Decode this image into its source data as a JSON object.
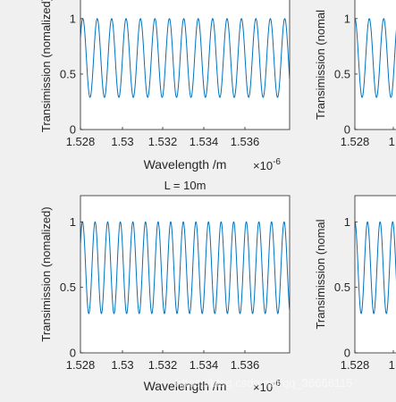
{
  "chart_data": [
    {
      "type": "line",
      "title": "",
      "xlabel": "Wavelength /m",
      "ylabel": "Transimission (nomalized)",
      "x_multiplier_base": "×10",
      "x_multiplier_exp": "-6",
      "xlim": [
        1.528,
        1.538
      ],
      "ylim": [
        0,
        1.2
      ],
      "x_ticks": [
        "1.528",
        "1.53",
        "1.532",
        "1.534",
        "1.536"
      ],
      "y_ticks": [
        "0",
        "0.5",
        "1"
      ],
      "series": [
        {
          "color": "#0072bd",
          "x_range": [
            1.528,
            1.538
          ],
          "y_min": 0.29,
          "y_max": 1.0,
          "cycles": 14.5
        }
      ],
      "grid": false
    },
    {
      "type": "line",
      "title": "",
      "xlabel": "",
      "ylabel": "Transimission (nomal",
      "xlim": [
        1.528,
        1.538
      ],
      "ylim": [
        0,
        1.2
      ],
      "x_ticks": [
        "1.528",
        "1."
      ],
      "y_ticks": [
        "0",
        "0.5",
        "1"
      ],
      "series": [
        {
          "color": "#0072bd",
          "y_min": 0.29,
          "y_max": 1.0
        }
      ]
    },
    {
      "type": "line",
      "title": "L = 10m",
      "xlabel": "Wavelength /m",
      "ylabel": "Transimission (nomalized)",
      "x_multiplier_base": "×10",
      "x_multiplier_exp": "-6",
      "xlim": [
        1.528,
        1.538
      ],
      "ylim": [
        0,
        1.2
      ],
      "x_ticks": [
        "1.528",
        "1.53",
        "1.532",
        "1.534",
        "1.536"
      ],
      "y_ticks": [
        "0",
        "0.5",
        "1"
      ],
      "series": [
        {
          "color": "#0072bd",
          "x_range": [
            1.528,
            1.538
          ],
          "y_min": 0.3,
          "y_max": 1.0,
          "cycles": 16.6
        }
      ],
      "grid": false
    },
    {
      "type": "line",
      "title": "",
      "xlabel": "",
      "ylabel": "Transimission (nomal",
      "xlim": [
        1.528,
        1.538
      ],
      "ylim": [
        0,
        1.2
      ],
      "x_ticks": [
        "1.528",
        "1."
      ],
      "y_ticks": [
        "0",
        "0.5",
        "1"
      ],
      "series": [
        {
          "color": "#0072bd",
          "y_min": 0.3,
          "y_max": 1.0
        }
      ]
    }
  ],
  "watermark": "https://blog.csdn.net/qq_36666115"
}
